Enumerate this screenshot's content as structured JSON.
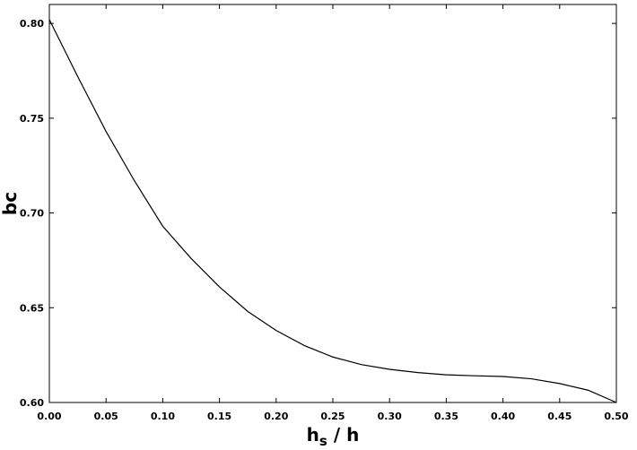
{
  "chart_data": {
    "type": "line",
    "xlabel": [
      "h",
      "s",
      " / h"
    ],
    "ylabel": "bc",
    "x": [
      0,
      0.025,
      0.05,
      0.075,
      0.1,
      0.125,
      0.15,
      0.175,
      0.2,
      0.225,
      0.25,
      0.275,
      0.3,
      0.325,
      0.35,
      0.375,
      0.4,
      0.425,
      0.45,
      0.475,
      0.5
    ],
    "series": [
      {
        "color": "#000000",
        "values": [
          0.802,
          0.772,
          0.743,
          0.717,
          0.693,
          0.676,
          0.661,
          0.648,
          0.638,
          0.63,
          0.624,
          0.62,
          0.6175,
          0.6158,
          0.6146,
          0.6141,
          0.6137,
          0.6125,
          0.61,
          0.6065,
          0.6
        ]
      }
    ],
    "xlim": [
      0,
      0.5
    ],
    "ylim": [
      0.6,
      0.81
    ],
    "xticks": [
      {
        "value": 0,
        "label": "0.00"
      },
      {
        "value": 0.05,
        "label": "0.05"
      },
      {
        "value": 0.1,
        "label": "0.10"
      },
      {
        "value": 0.15,
        "label": "0.15"
      },
      {
        "value": 0.2,
        "label": "0.20"
      },
      {
        "value": 0.25,
        "label": "0.25"
      },
      {
        "value": 0.3,
        "label": "0.30"
      },
      {
        "value": 0.35,
        "label": "0.35"
      },
      {
        "value": 0.4,
        "label": "0.40"
      },
      {
        "value": 0.45,
        "label": "0.45"
      },
      {
        "value": 0.5,
        "label": "0.50"
      }
    ],
    "yticks": [
      {
        "value": 0.6,
        "label": "0.60"
      },
      {
        "value": 0.65,
        "label": "0.65"
      },
      {
        "value": 0.7,
        "label": "0.70"
      },
      {
        "value": 0.75,
        "label": "0.75"
      },
      {
        "value": 0.8,
        "label": "0.80"
      }
    ],
    "grid": false
  }
}
